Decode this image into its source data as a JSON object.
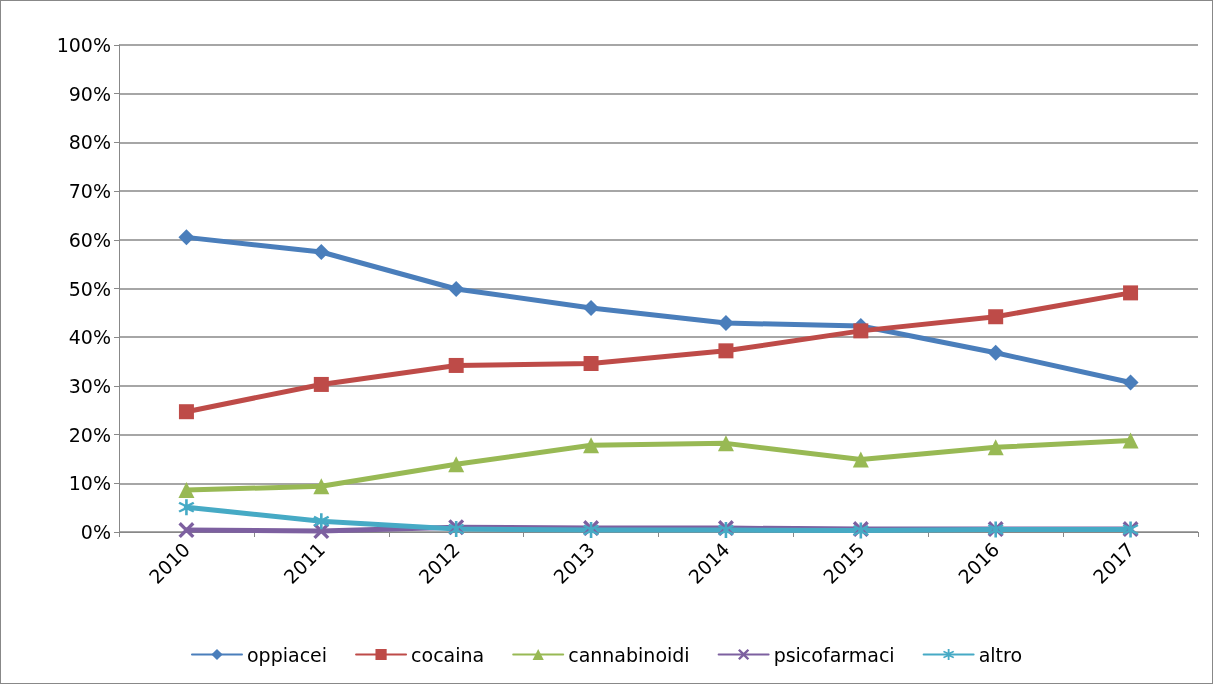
{
  "chart_data": {
    "type": "line",
    "categories": [
      "2010",
      "2011",
      "2012",
      "2013",
      "2014",
      "2015",
      "2016",
      "2017"
    ],
    "series": [
      {
        "name": "oppiacei",
        "color": "#4a7ebb",
        "marker": "diamond",
        "values": [
          60.5,
          57.5,
          49.9,
          46,
          42.9,
          42.3,
          36.8,
          30.7
        ]
      },
      {
        "name": "cocaina",
        "color": "#be4b48",
        "marker": "square",
        "values": [
          24.7,
          30.3,
          34.2,
          34.6,
          37.2,
          41.3,
          44.2,
          49.1
        ]
      },
      {
        "name": "cannabinoidi",
        "color": "#98b954",
        "marker": "triangle",
        "values": [
          8.6,
          9.4,
          13.9,
          17.8,
          18.2,
          14.9,
          17.4,
          18.8
        ]
      },
      {
        "name": "psicofarmaci",
        "color": "#7d60a0",
        "marker": "cross",
        "values": [
          0.4,
          0.2,
          1.0,
          0.8,
          0.8,
          0.6,
          0.6,
          0.6
        ]
      },
      {
        "name": "altro",
        "color": "#46aac5",
        "marker": "star",
        "values": [
          5.1,
          2.2,
          0.6,
          0.4,
          0.4,
          0.3,
          0.5,
          0.5
        ]
      }
    ],
    "ylim": [
      0,
      100
    ],
    "yticks": [
      {
        "value": 0,
        "label": "0%"
      },
      {
        "value": 10,
        "label": "10%"
      },
      {
        "value": 20,
        "label": "20%"
      },
      {
        "value": 30,
        "label": "30%"
      },
      {
        "value": 40,
        "label": "40%"
      },
      {
        "value": 50,
        "label": "50%"
      },
      {
        "value": 60,
        "label": "60%"
      },
      {
        "value": 70,
        "label": "70%"
      },
      {
        "value": 80,
        "label": "80%"
      },
      {
        "value": 90,
        "label": "90%"
      },
      {
        "value": 100,
        "label": "100%"
      }
    ],
    "grid": "y",
    "legend": "bottom",
    "line_style": "solid"
  }
}
